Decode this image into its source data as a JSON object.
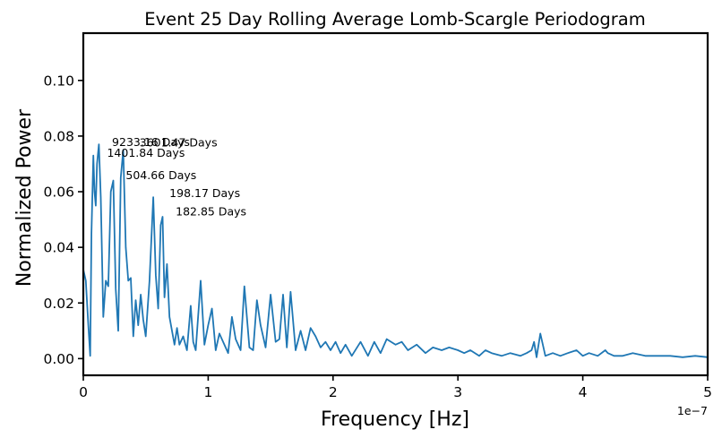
{
  "chart_data": {
    "type": "line",
    "title": "Event 25 Day Rolling Average Lomb-Scargle Periodogram",
    "xlabel": "Frequency [Hz]",
    "ylabel": "Normalized Power",
    "x_offset_label": "1e−7",
    "xlim": [
      0,
      5e-07
    ],
    "ylim": [
      -0.006,
      0.117
    ],
    "xticks": [
      0,
      1e-07,
      2e-07,
      3e-07,
      4e-07,
      5e-07
    ],
    "xtick_labels": [
      "0",
      "1",
      "2",
      "3",
      "4",
      "5"
    ],
    "yticks": [
      0.0,
      0.02,
      0.04,
      0.06,
      0.08,
      0.1
    ],
    "ytick_labels": [
      "0.00",
      "0.02",
      "0.04",
      "0.06",
      "0.08",
      "0.10"
    ],
    "grid": false,
    "line_color": "#1f77b4",
    "series": [
      {
        "x": [
          0,
          2e-09,
          4e-09,
          5.5e-09,
          6.5e-09,
          8e-09,
          9e-09,
          1e-08,
          1.1e-08,
          1.25e-08,
          1.4e-08,
          1.6e-08,
          1.8e-08,
          2e-08,
          2.2e-08,
          2.4e-08,
          2.6e-08,
          2.8e-08,
          3e-08,
          3.2e-08,
          3.4e-08,
          3.6e-08,
          3.8e-08,
          4e-08,
          4.2e-08,
          4.4e-08,
          4.6e-08,
          4.8e-08,
          5e-08,
          5.3e-08,
          5.6e-08,
          5.8e-08,
          6e-08,
          6.2e-08,
          6.35e-08,
          6.5e-08,
          6.7e-08,
          6.9e-08,
          7.1e-08,
          7.3e-08,
          7.5e-08,
          7.7e-08,
          8e-08,
          8.3e-08,
          8.6e-08,
          8.8e-08,
          9e-08,
          9.4e-08,
          9.7e-08,
          1e-07,
          1.03e-07,
          1.06e-07,
          1.09e-07,
          1.12e-07,
          1.16e-07,
          1.19e-07,
          1.22e-07,
          1.26e-07,
          1.29e-07,
          1.33e-07,
          1.36e-07,
          1.39e-07,
          1.42e-07,
          1.46e-07,
          1.5e-07,
          1.54e-07,
          1.57e-07,
          1.6e-07,
          1.63e-07,
          1.66e-07,
          1.7e-07,
          1.74e-07,
          1.78e-07,
          1.82e-07,
          1.86e-07,
          1.9e-07,
          1.94e-07,
          1.98e-07,
          2.02e-07,
          2.06e-07,
          2.1e-07,
          2.15e-07,
          2.22e-07,
          2.28e-07,
          2.33e-07,
          2.38e-07,
          2.43e-07,
          2.5e-07,
          2.55e-07,
          2.6e-07,
          2.67e-07,
          2.74e-07,
          2.8e-07,
          2.87e-07,
          2.93e-07,
          3e-07,
          3.05e-07,
          3.1e-07,
          3.17e-07,
          3.22e-07,
          3.27e-07,
          3.35e-07,
          3.42e-07,
          3.5e-07,
          3.55e-07,
          3.59e-07,
          3.61e-07,
          3.63e-07,
          3.66e-07,
          3.7e-07,
          3.76e-07,
          3.82e-07,
          3.88e-07,
          3.95e-07,
          4e-07,
          4.05e-07,
          4.12e-07,
          4.18e-07,
          4.2e-07,
          4.25e-07,
          4.32e-07,
          4.4e-07,
          4.5e-07,
          4.6e-07,
          4.7e-07,
          4.8e-07,
          4.9e-07,
          5e-07
        ],
        "y": [
          0.032,
          0.028,
          0.012,
          0.001,
          0.045,
          0.073,
          0.06,
          0.055,
          0.07,
          0.077,
          0.058,
          0.015,
          0.028,
          0.026,
          0.06,
          0.064,
          0.025,
          0.01,
          0.065,
          0.075,
          0.04,
          0.028,
          0.029,
          0.008,
          0.021,
          0.012,
          0.023,
          0.014,
          0.008,
          0.028,
          0.058,
          0.03,
          0.018,
          0.048,
          0.051,
          0.022,
          0.034,
          0.015,
          0.01,
          0.005,
          0.011,
          0.005,
          0.008,
          0.003,
          0.019,
          0.006,
          0.003,
          0.028,
          0.005,
          0.012,
          0.018,
          0.003,
          0.009,
          0.006,
          0.002,
          0.015,
          0.007,
          0.003,
          0.026,
          0.004,
          0.003,
          0.021,
          0.012,
          0.004,
          0.023,
          0.006,
          0.007,
          0.023,
          0.004,
          0.024,
          0.003,
          0.01,
          0.003,
          0.011,
          0.008,
          0.004,
          0.006,
          0.003,
          0.006,
          0.002,
          0.005,
          0.001,
          0.006,
          0.001,
          0.006,
          0.002,
          0.007,
          0.005,
          0.006,
          0.003,
          0.005,
          0.002,
          0.004,
          0.003,
          0.004,
          0.003,
          0.002,
          0.003,
          0.001,
          0.003,
          0.002,
          0.001,
          0.002,
          0.001,
          0.002,
          0.003,
          0.006,
          0.0005,
          0.009,
          0.001,
          0.002,
          0.001,
          0.002,
          0.003,
          0.001,
          0.002,
          0.001,
          0.003,
          0.002,
          0.001,
          0.001,
          0.002,
          0.001,
          0.001,
          0.001,
          0.0005,
          0.001,
          0.0005
        ]
      }
    ],
    "annotations": [
      {
        "text": "9233.16 Days",
        "x": 2.3e-08,
        "y": 0.0765
      },
      {
        "text": "3601.47 Days",
        "x": 4.5e-08,
        "y": 0.0762
      },
      {
        "text": "1401.84 Days",
        "x": 1.9e-08,
        "y": 0.0725
      },
      {
        "text": "504.66 Days",
        "x": 3.4e-08,
        "y": 0.0645
      },
      {
        "text": "198.17 Days",
        "x": 6.9e-08,
        "y": 0.058
      },
      {
        "text": "182.85 Days",
        "x": 7.4e-08,
        "y": 0.0515
      }
    ]
  }
}
